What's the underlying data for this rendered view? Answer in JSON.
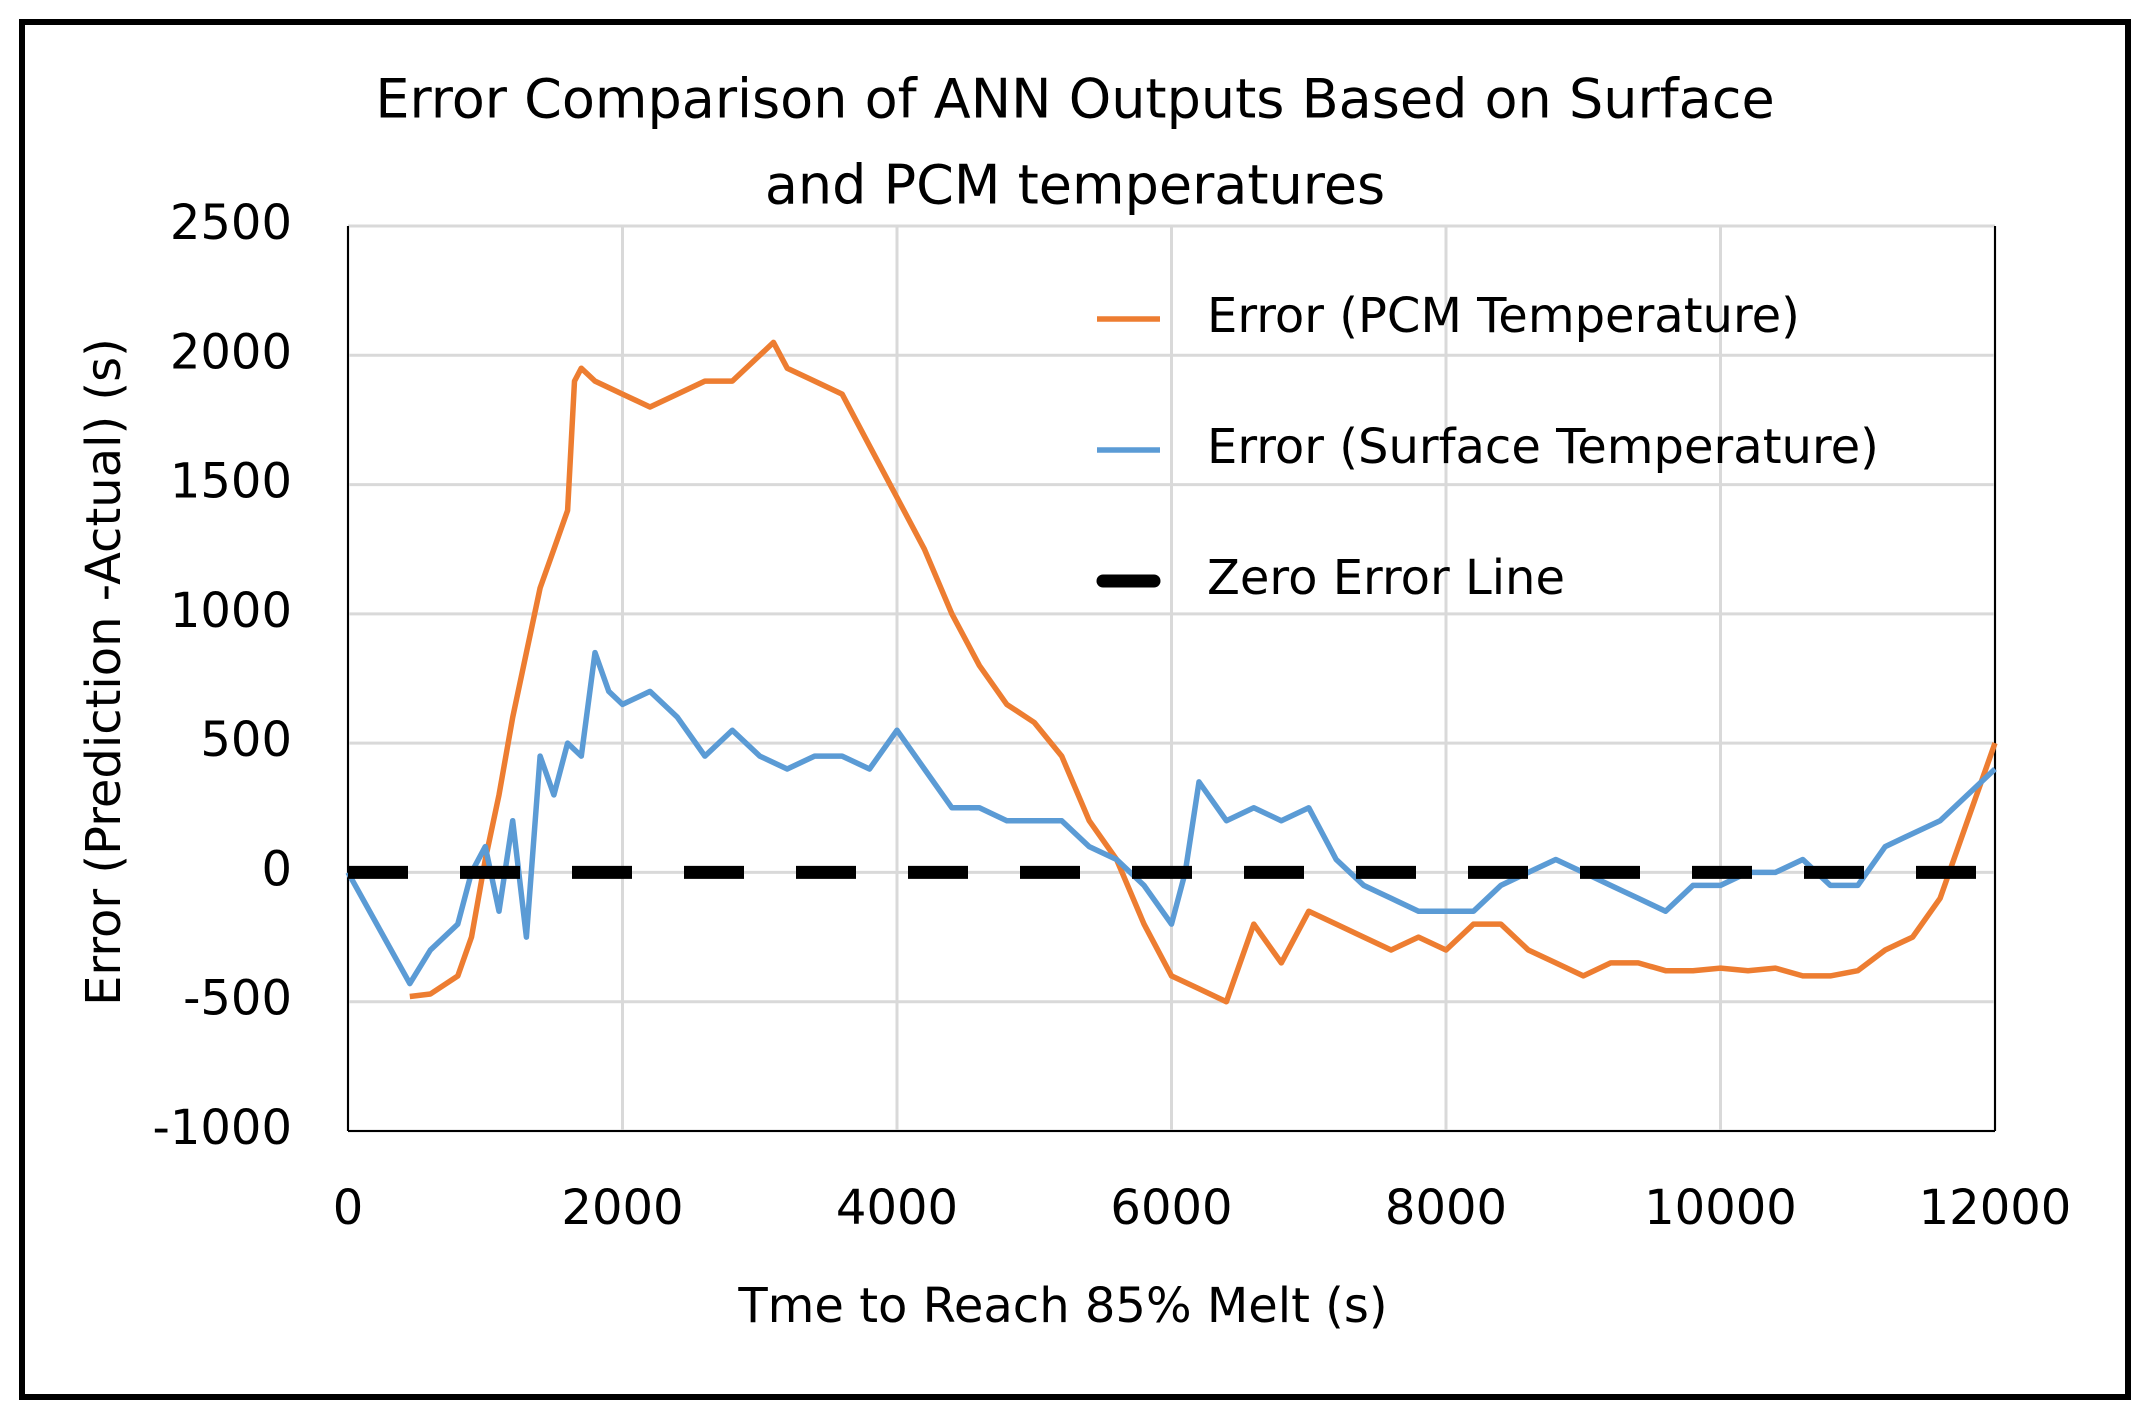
{
  "chart_data": {
    "type": "line",
    "title": [
      "Error Comparison of ANN Outputs Based on Surface",
      "and PCM temperatures"
    ],
    "x_label": "Tme to Reach 85% Melt (s)",
    "y_label": "Error (Prediction -Actual) (s)",
    "xlim": [
      0,
      12000
    ],
    "xticks": [
      0,
      2000,
      4000,
      6000,
      8000,
      10000,
      12000
    ],
    "ylim": [
      -1000,
      2500
    ],
    "yticks": [
      -1000,
      -500,
      0,
      500,
      1000,
      1500,
      2000,
      2500
    ],
    "grid": true,
    "legend": "upper right",
    "series": [
      {
        "name": "Error (PCM Temperature)",
        "color": "#ed7d31",
        "style": "solid",
        "x": [
          450,
          600,
          800,
          900,
          1000,
          1100,
          1200,
          1300,
          1400,
          1500,
          1600,
          1650,
          1700,
          1800,
          2000,
          2200,
          2400,
          2600,
          2800,
          3000,
          3100,
          3200,
          3400,
          3600,
          3800,
          4000,
          4200,
          4400,
          4600,
          4800,
          5000,
          5200,
          5400,
          5600,
          5800,
          6000,
          6200,
          6400,
          6600,
          6800,
          7000,
          7200,
          7400,
          7600,
          7800,
          8000,
          8200,
          8400,
          8600,
          8800,
          9000,
          9200,
          9400,
          9600,
          9800,
          10000,
          10200,
          10400,
          10600,
          10800,
          11000,
          11200,
          11400,
          11600,
          11800,
          12000
        ],
        "values": [
          -480,
          -470,
          -400,
          -250,
          50,
          300,
          600,
          850,
          1100,
          1250,
          1400,
          1900,
          1950,
          1900,
          1850,
          1800,
          1850,
          1900,
          1900,
          2000,
          2050,
          1950,
          1900,
          1850,
          1650,
          1450,
          1250,
          1000,
          800,
          650,
          580,
          450,
          200,
          50,
          -200,
          -400,
          -450,
          -500,
          -200,
          -350,
          -150,
          -200,
          -250,
          -300,
          -250,
          -300,
          -200,
          -200,
          -300,
          -350,
          -400,
          -350,
          -350,
          -380,
          -380,
          -370,
          -380,
          -370,
          -400,
          -400,
          -380,
          -300,
          -250,
          -100,
          200,
          500
        ]
      },
      {
        "name": "Error (Surface Temperature)",
        "color": "#5b9bd5",
        "style": "solid",
        "x": [
          0,
          450,
          600,
          800,
          900,
          1000,
          1100,
          1200,
          1300,
          1400,
          1500,
          1600,
          1700,
          1800,
          1900,
          2000,
          2200,
          2400,
          2600,
          2800,
          3000,
          3200,
          3400,
          3600,
          3800,
          4000,
          4200,
          4400,
          4600,
          4800,
          5000,
          5200,
          5400,
          5600,
          5800,
          6000,
          6100,
          6200,
          6400,
          6600,
          6800,
          7000,
          7200,
          7400,
          7600,
          7800,
          8000,
          8200,
          8400,
          8600,
          8800,
          9000,
          9200,
          9400,
          9600,
          9800,
          10000,
          10200,
          10400,
          10600,
          10800,
          11000,
          11200,
          11400,
          11600,
          11800,
          12000
        ],
        "values": [
          0,
          -430,
          -300,
          -200,
          0,
          100,
          -150,
          200,
          -250,
          450,
          300,
          500,
          450,
          850,
          700,
          650,
          700,
          600,
          450,
          550,
          450,
          400,
          450,
          450,
          400,
          550,
          400,
          250,
          250,
          200,
          200,
          200,
          100,
          50,
          -50,
          -200,
          0,
          350,
          200,
          250,
          200,
          250,
          50,
          -50,
          -100,
          -150,
          -150,
          -150,
          -50,
          0,
          50,
          0,
          -50,
          -100,
          -150,
          -50,
          -50,
          0,
          0,
          50,
          -50,
          -50,
          100,
          150,
          200,
          300,
          400
        ]
      },
      {
        "name": "Zero Error Line",
        "color": "#000000",
        "style": "dashed",
        "x": [
          0,
          12000
        ],
        "values": [
          0,
          0
        ]
      }
    ]
  }
}
